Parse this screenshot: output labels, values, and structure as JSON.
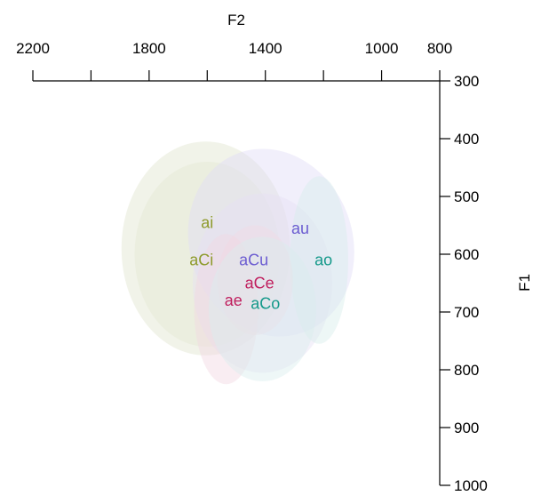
{
  "chart_data": {
    "type": "scatter",
    "xlabel": "F2",
    "ylabel": "F1",
    "xlim": [
      2200,
      800
    ],
    "ylim": [
      300,
      1000
    ],
    "x_ticks": [
      2200,
      1800,
      1400,
      1000,
      800
    ],
    "x_minor_ticks": [
      2200,
      2000,
      1800,
      1600,
      1400,
      1200,
      1000,
      800
    ],
    "y_ticks": [
      300,
      400,
      500,
      600,
      700,
      800,
      900,
      1000
    ],
    "x_axis_position": "top",
    "y_axis_position": "right",
    "points": [
      {
        "label": "ai",
        "F2": 1600,
        "F1": 545,
        "color": "#8e9a2b"
      },
      {
        "label": "au",
        "F2": 1280,
        "F1": 555,
        "color": "#6b5cd1"
      },
      {
        "label": "aCi",
        "F2": 1620,
        "F1": 610,
        "color": "#8e9a2b"
      },
      {
        "label": "aCu",
        "F2": 1440,
        "F1": 610,
        "color": "#6b5cd1"
      },
      {
        "label": "ao",
        "F2": 1200,
        "F1": 610,
        "color": "#14998a"
      },
      {
        "label": "aCe",
        "F2": 1420,
        "F1": 650,
        "color": "#c01f5e"
      },
      {
        "label": "ae",
        "F2": 1510,
        "F1": 680,
        "color": "#c01f5e"
      },
      {
        "label": "aCo",
        "F2": 1400,
        "F1": 685,
        "color": "#14998a"
      }
    ],
    "ellipses": [
      {
        "name": "ai",
        "F2": 1605,
        "F1": 590,
        "rF2": 290,
        "rF1": 185,
        "angle": 0,
        "color": "#dfe5cf"
      },
      {
        "name": "aCi",
        "F2": 1600,
        "F1": 600,
        "rF2": 250,
        "rF1": 160,
        "angle": 0,
        "color": "#e5e8d2"
      },
      {
        "name": "au",
        "F2": 1380,
        "F1": 580,
        "rF2": 280,
        "rF1": 165,
        "angle": -20,
        "color": "#e1dcf7"
      },
      {
        "name": "aCu",
        "F2": 1410,
        "F1": 650,
        "rF2": 240,
        "rF1": 155,
        "angle": 0,
        "color": "#e6e0f5"
      },
      {
        "name": "ao",
        "F2": 1215,
        "F1": 610,
        "rF2": 100,
        "rF1": 145,
        "angle": 0,
        "color": "#d6eeeb"
      },
      {
        "name": "aCe",
        "F2": 1435,
        "F1": 645,
        "rF2": 130,
        "rF1": 95,
        "angle": 0,
        "color": "#f1d9e5"
      },
      {
        "name": "ae",
        "F2": 1535,
        "F1": 695,
        "rF2": 110,
        "rF1": 130,
        "angle": 0,
        "color": "#f1d7e3"
      },
      {
        "name": "aCo",
        "F2": 1410,
        "F1": 695,
        "rF2": 185,
        "rF1": 125,
        "angle": 0,
        "color": "#daeeed"
      }
    ]
  }
}
